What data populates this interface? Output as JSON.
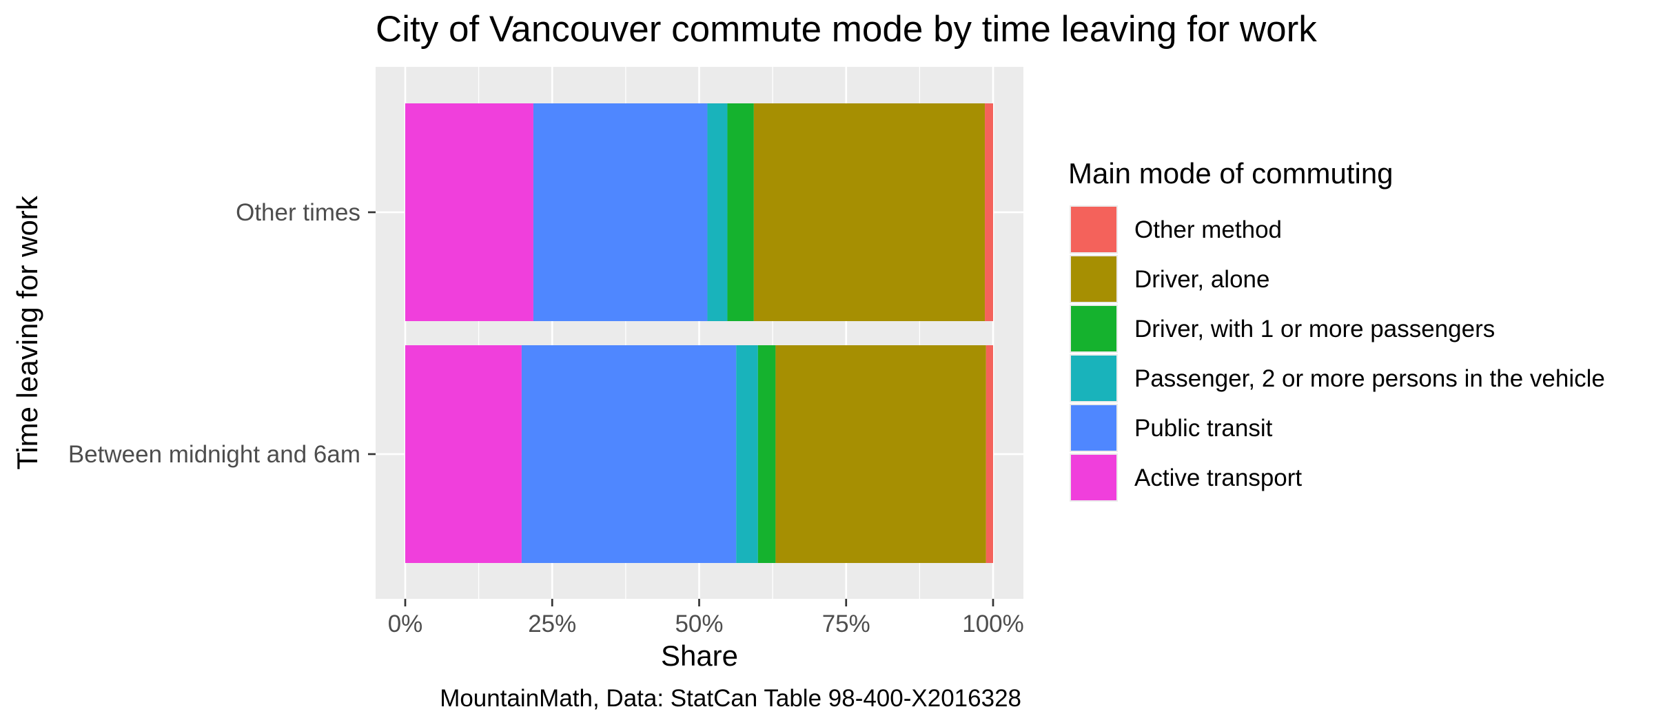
{
  "chart_data": {
    "type": "bar",
    "orientation": "horizontal",
    "stacked": true,
    "title": "City of Vancouver commute mode by time leaving for work",
    "xlabel": "Share",
    "ylabel": "Time leaving for work",
    "caption": "MountainMath, Data: StatCan Table 98-400-X2016328",
    "xlim": [
      0,
      1
    ],
    "x_ticks": [
      "0%",
      "25%",
      "50%",
      "75%",
      "100%"
    ],
    "x_tick_values": [
      0,
      0.25,
      0.5,
      0.75,
      1.0
    ],
    "grid": true,
    "legend_position": "right",
    "legend_title": "Main mode of commuting",
    "legend_items": [
      "Other method",
      "Driver, alone",
      "Driver, with 1 or more passengers",
      "Passenger, 2 or more persons in the vehicle",
      "Public transit",
      "Active transport"
    ],
    "categories": [
      "Other times",
      "Between midnight and 6am"
    ],
    "series": [
      {
        "name": "Active transport",
        "color": "#F03FDC",
        "values": [
          0.218,
          0.198
        ]
      },
      {
        "name": "Public transit",
        "color": "#4F87FF",
        "values": [
          0.296,
          0.365
        ]
      },
      {
        "name": "Passenger, 2 or more persons in the vehicle",
        "color": "#19B3BB",
        "values": [
          0.034,
          0.037
        ]
      },
      {
        "name": "Driver, with 1 or more passengers",
        "color": "#15B22E",
        "values": [
          0.045,
          0.03
        ]
      },
      {
        "name": "Driver, alone",
        "color": "#A68F02",
        "values": [
          0.393,
          0.358
        ]
      },
      {
        "name": "Other method",
        "color": "#F4625B",
        "values": [
          0.014,
          0.012
        ]
      }
    ]
  }
}
